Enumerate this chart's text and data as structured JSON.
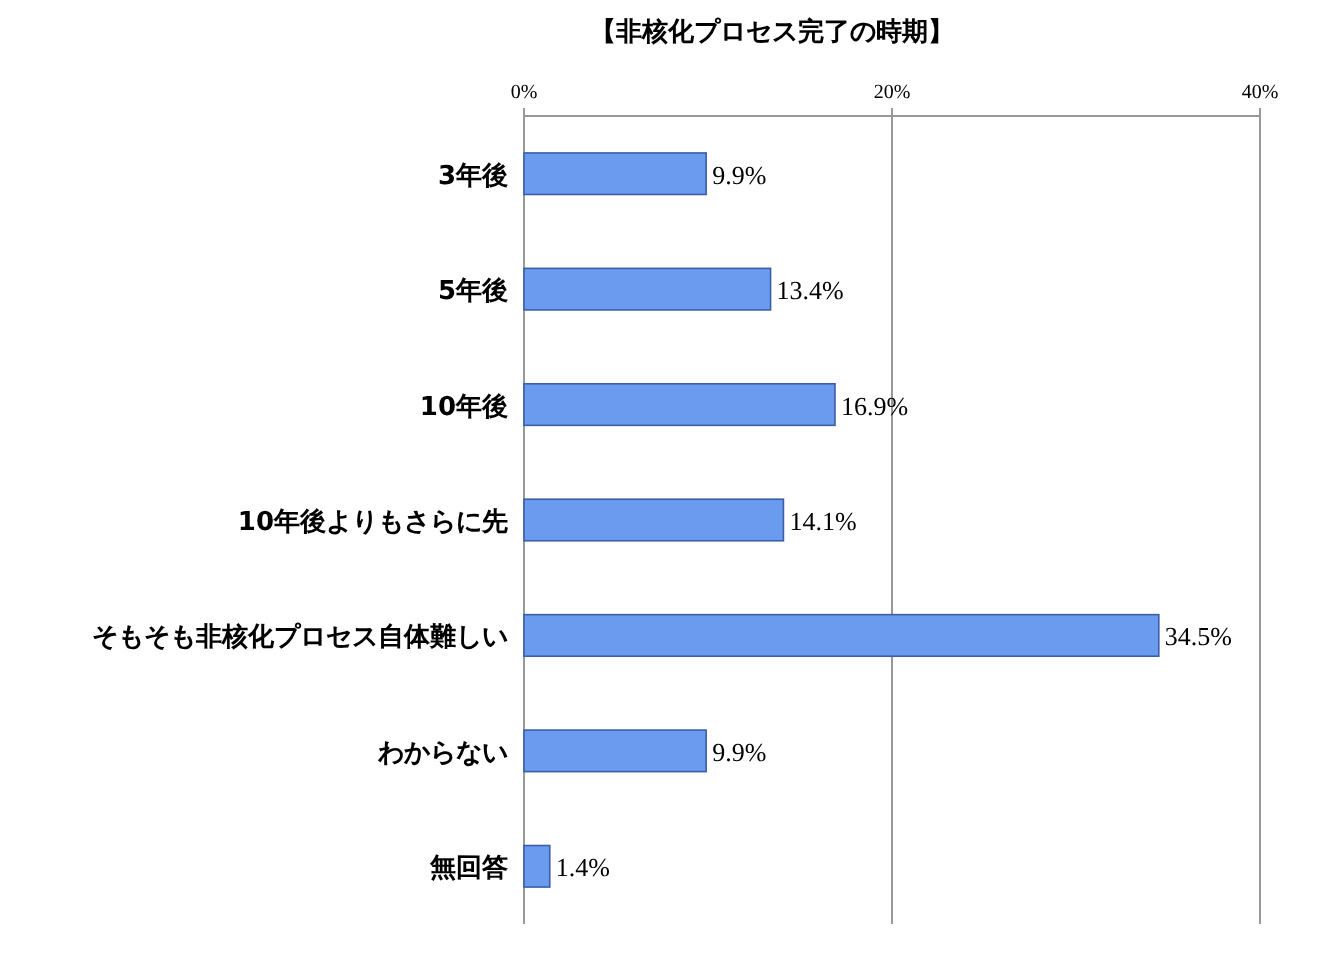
{
  "chart_data": {
    "type": "bar",
    "orientation": "horizontal",
    "title": "【非核化プロセス完了の時期】",
    "categories": [
      "3年後",
      "5年後",
      "10年後",
      "10年後よりもさらに先",
      "そもそも非核化プロセス自体難しい",
      "わからない",
      "無回答"
    ],
    "values": [
      9.9,
      13.4,
      16.9,
      14.1,
      34.5,
      9.9,
      1.4
    ],
    "value_labels": [
      "9.9%",
      "13.4%",
      "16.9%",
      "14.1%",
      "34.5%",
      "9.9%",
      "1.4%"
    ],
    "color": "#6b9bef",
    "xlim": [
      0,
      40
    ],
    "xticks": [
      {
        "value": 0,
        "label": "0%"
      },
      {
        "value": 20,
        "label": "20%"
      },
      {
        "value": 40,
        "label": "40%"
      }
    ],
    "grid": "x"
  }
}
